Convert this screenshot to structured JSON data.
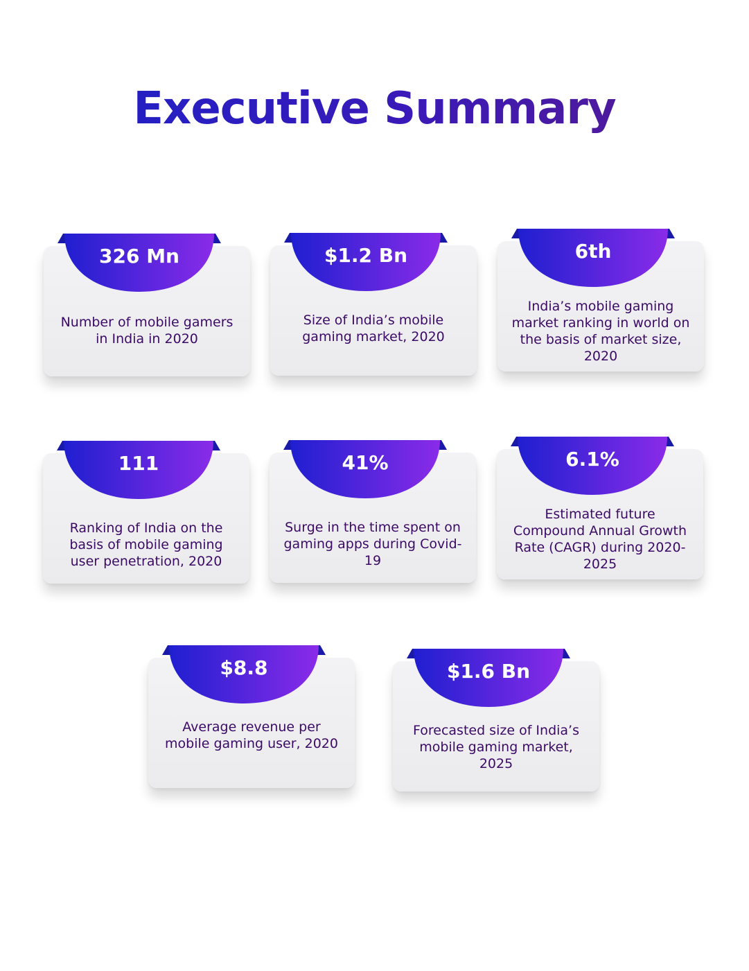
{
  "title": "Executive Summary",
  "colors": {
    "title": "#1a22c8",
    "accent_start": "#1f1fd0",
    "accent_end": "#8a2be8",
    "description_text": "#3a0a66"
  },
  "cards": [
    {
      "value": "326 Mn",
      "description": "Number of mobile gamers in India in 2020"
    },
    {
      "value": "$1.2 Bn",
      "description": "Size of India’s mobile gaming market, 2020"
    },
    {
      "value": "6th",
      "description": "India’s mobile gaming market ranking in world on the basis of market size, 2020"
    },
    {
      "value": "111",
      "description": "Ranking of India on the basis of mobile gaming user penetration, 2020"
    },
    {
      "value": "41%",
      "description": "Surge in the time spent on gaming apps during Covid-19"
    },
    {
      "value": "6.1%",
      "description": "Estimated future Compound Annual Growth Rate (CAGR) during 2020-2025"
    },
    {
      "value": "$8.8",
      "description": "Average revenue per mobile gaming user, 2020"
    },
    {
      "value": "$1.6 Bn",
      "description": "Forecasted size of India’s mobile gaming market, 2025"
    }
  ]
}
